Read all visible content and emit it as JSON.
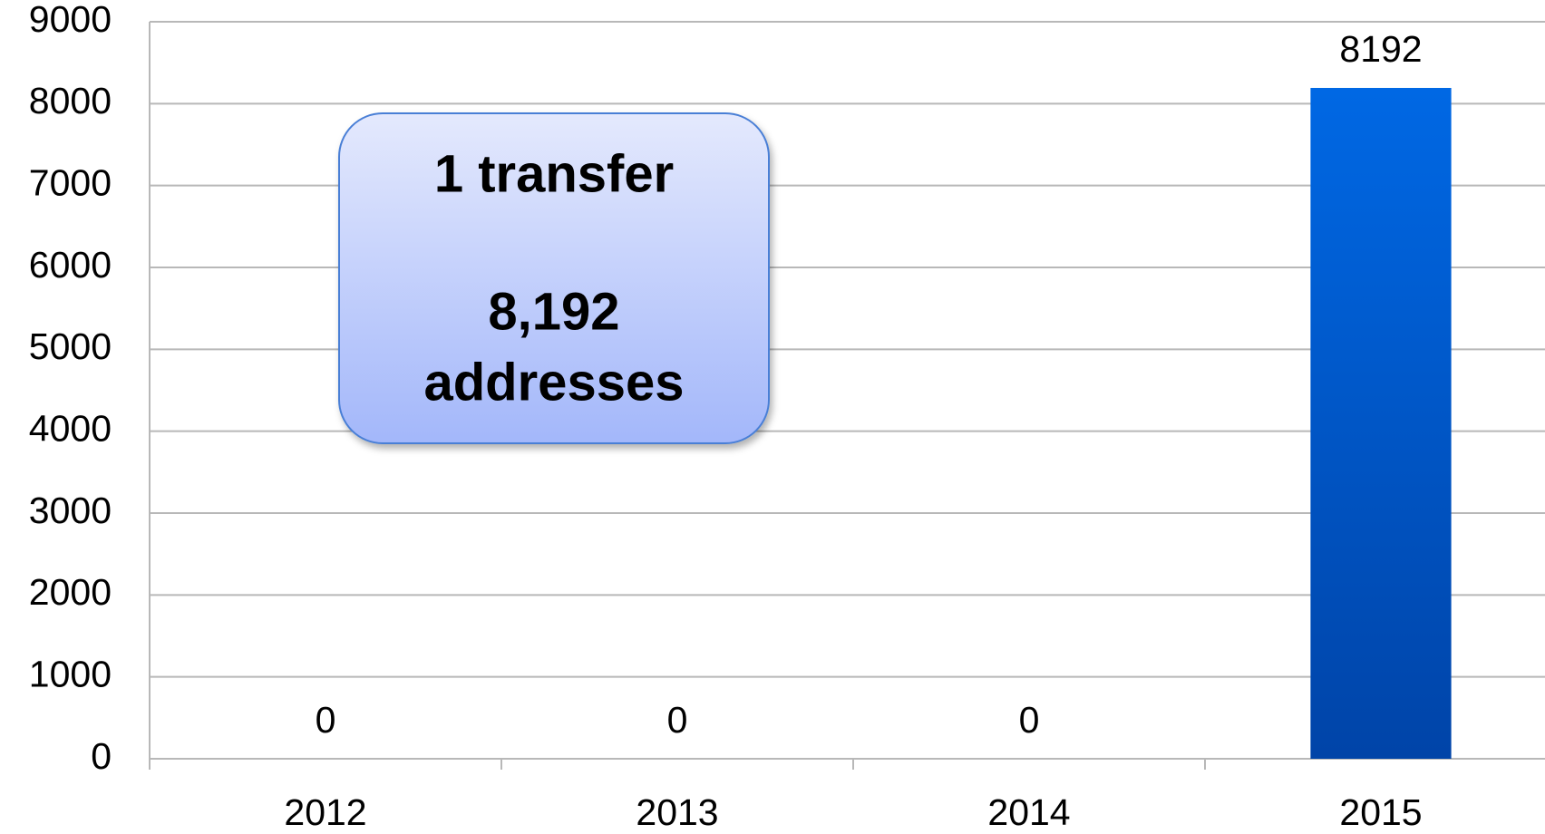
{
  "chart_data": {
    "type": "bar",
    "categories": [
      "2012",
      "2013",
      "2014",
      "2015"
    ],
    "values": [
      0,
      0,
      0,
      8192
    ],
    "color": "#0058cc",
    "ylim": [
      0,
      9000
    ],
    "yticks": [
      0,
      1000,
      2000,
      3000,
      4000,
      5000,
      6000,
      7000,
      8000,
      9000
    ],
    "grid": true,
    "annotation": [
      "1 transfer",
      "8,192",
      "addresses"
    ]
  }
}
